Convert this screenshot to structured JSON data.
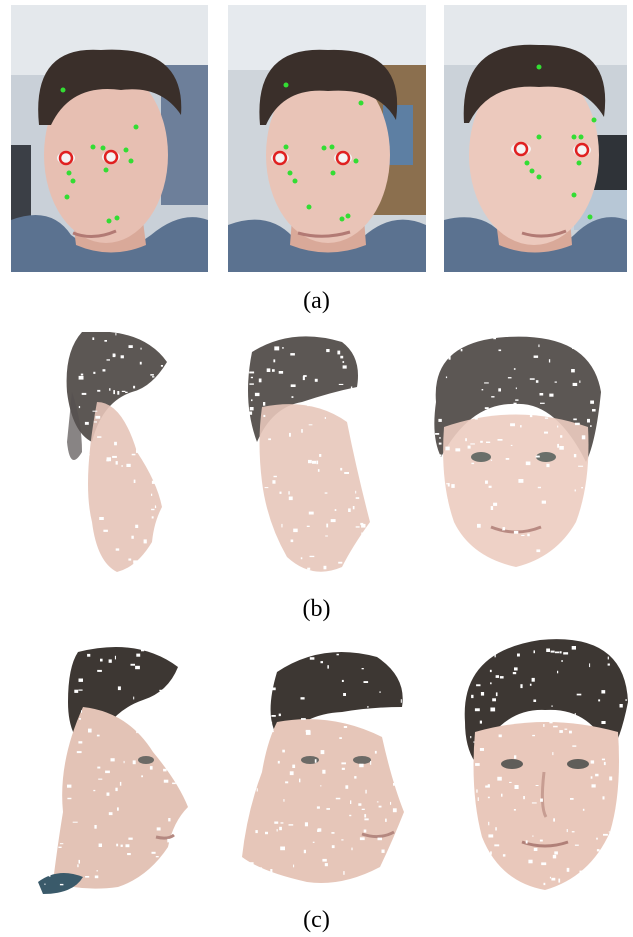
{
  "captions": {
    "a": "(a)",
    "b": "(b)",
    "c": "(c)"
  },
  "colors": {
    "background": "#ffffff",
    "landmark_marker": "#33dd33",
    "eye_marker_ring": "#e02020",
    "skin": "#e8c1b5",
    "hair": "#3a2f2a",
    "shirt": "#5b7290",
    "office_wall": "#d8dde3"
  },
  "panels": {
    "a": [
      "photo-left-view",
      "photo-frontal-view",
      "photo-right-view"
    ],
    "b": [
      "sparse-cloud-profile",
      "sparse-cloud-three-quarter",
      "sparse-cloud-frontal"
    ],
    "c": [
      "dense-cloud-profile",
      "dense-cloud-three-quarter",
      "dense-cloud-frontal"
    ]
  }
}
